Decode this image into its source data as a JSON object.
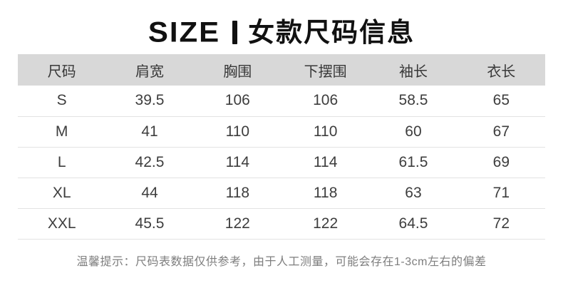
{
  "title": {
    "brand": "SIZE",
    "text": "女款尺码信息"
  },
  "table": {
    "headers": [
      "尺码",
      "肩宽",
      "胸围",
      "下摆围",
      "袖长",
      "衣长"
    ],
    "rows": [
      [
        "S",
        "39.5",
        "106",
        "106",
        "58.5",
        "65"
      ],
      [
        "M",
        "41",
        "110",
        "110",
        "60",
        "67"
      ],
      [
        "L",
        "42.5",
        "114",
        "114",
        "61.5",
        "69"
      ],
      [
        "XL",
        "44",
        "118",
        "118",
        "63",
        "71"
      ],
      [
        "XXL",
        "45.5",
        "122",
        "122",
        "64.5",
        "72"
      ]
    ]
  },
  "note": "温馨提示：尺码表数据仅供参考，由于人工测量，可能会存在1-3cm左右的偏差",
  "colors": {
    "background": "#ffffff",
    "header_bg": "#d8d8d8",
    "header_text": "#383838",
    "body_text": "#3d3d3d",
    "divider": "#e3e3e3",
    "title_text": "#111111",
    "note_text": "#7e7e7e"
  }
}
